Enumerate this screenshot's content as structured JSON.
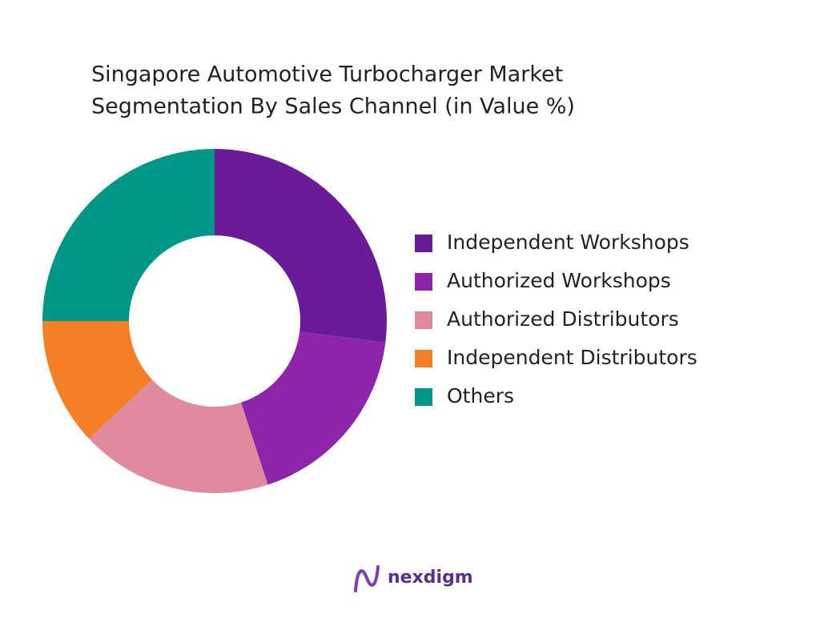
{
  "chart_data": {
    "type": "donut",
    "title": [
      "Singapore Automotive Turbocharger Market",
      "Segmentation By Sales Channel  (in Value %)"
    ],
    "categories": [
      "Independent Workshops",
      "Authorized Workshops",
      "Authorized Distributors",
      "Independent Distributors",
      "Others"
    ],
    "values": [
      27,
      18,
      18,
      12,
      25
    ],
    "colors": [
      "#6a1b9a",
      "#8e24aa",
      "#e08aa0",
      "#f47f26",
      "#009688"
    ],
    "legend": "right"
  },
  "footer": {
    "brand": "nexdigm"
  }
}
